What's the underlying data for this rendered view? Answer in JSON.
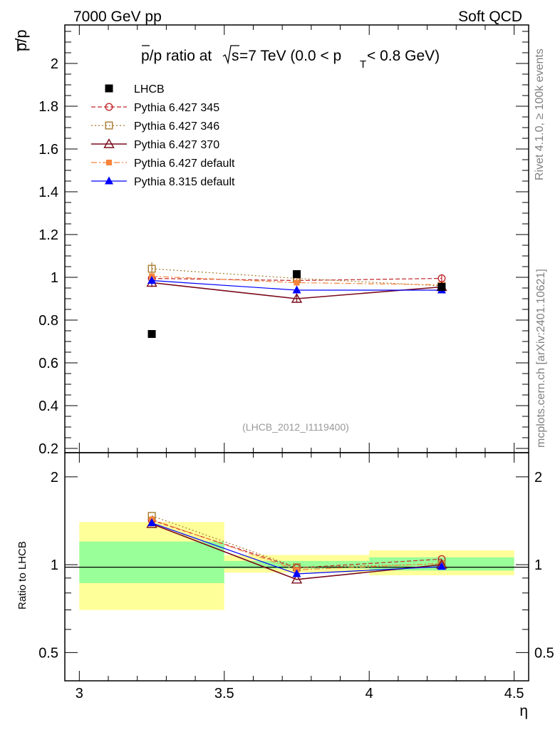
{
  "header": {
    "left": "7000 GeV pp",
    "right": "Soft QCD"
  },
  "side_labels": {
    "rivet": "Rivet 4.1.0, ≥ 100k events",
    "mcplots": "mcplots.cern.ch [arXiv:2401.10621]"
  },
  "watermark": "(LHCB_2012_I1119400)",
  "colors": {
    "lhcb": "#000000",
    "p345": "#c0272d",
    "p346": "#a67c2e",
    "p370": "#7a0a1a",
    "pdef6": "#f7843c",
    "pdef8": "#0000ff",
    "band_inner": "#99ff99",
    "band_outer": "#ffff99"
  },
  "chart_data": [
    {
      "type": "line",
      "title": "p̄/p ratio at √s=7 TeV (0.0 < pT < 0.8 GeV)",
      "title_parts": {
        "ratio": "p/p ratio at ",
        "sqrt_s": "s",
        "mid": "=7 TeV (0.0 < p",
        "sub": "T",
        "tail": " < 0.8 GeV)"
      },
      "ylabel": "p/p",
      "xlim": [
        2.95,
        4.55
      ],
      "ylim": [
        0.18,
        2.18
      ],
      "yticks": [
        0.2,
        0.4,
        0.6,
        0.8,
        1,
        1.2,
        1.4,
        1.6,
        1.8,
        2
      ],
      "ytick_labels": [
        "0.2",
        "0.4",
        "0.6",
        "0.8",
        "1",
        "1.2",
        "1.4",
        "1.6",
        "1.8",
        "2"
      ],
      "x": [
        3.25,
        3.75,
        4.25
      ],
      "series": [
        {
          "key": "lhcb",
          "name": "LHCB",
          "values": [
            0.735,
            1.015,
            0.955
          ],
          "errors": [
            0.01,
            0.01,
            0.01
          ]
        },
        {
          "key": "p345",
          "name": "Pythia 6.427 345",
          "values": [
            0.995,
            0.985,
            0.995
          ],
          "errors": [
            0.02,
            0.015,
            0.02
          ]
        },
        {
          "key": "p346",
          "name": "Pythia 6.427 346",
          "values": [
            1.04,
            0.995,
            0.96
          ],
          "errors": [
            0.03,
            0.015,
            0.02
          ]
        },
        {
          "key": "p370",
          "name": "Pythia 6.427 370",
          "values": [
            0.975,
            0.9,
            0.955
          ],
          "errors": [
            0.02,
            0.015,
            0.015
          ]
        },
        {
          "key": "pdef6",
          "name": "Pythia 6.427 default",
          "values": [
            1.005,
            0.975,
            0.965
          ],
          "errors": [
            0.02,
            0.015,
            0.015
          ]
        },
        {
          "key": "pdef8",
          "name": "Pythia 8.315 default",
          "values": [
            0.985,
            0.94,
            0.94
          ],
          "errors": [
            0.02,
            0.015,
            0.015
          ]
        }
      ]
    },
    {
      "type": "line",
      "ylabel": "Ratio to LHCB",
      "xlabel": "η",
      "yscale": "log",
      "xlim": [
        2.95,
        4.55
      ],
      "ylim": [
        0.4,
        2.42
      ],
      "xticks": [
        3,
        3.5,
        4,
        4.5
      ],
      "xtick_labels": [
        "3",
        "3.5",
        "4",
        "4.5"
      ],
      "yticks": [
        0.5,
        1,
        2
      ],
      "ytick_labels": [
        "0.5",
        "1",
        "2"
      ],
      "bands": [
        {
          "x_low": 3.0,
          "x_high": 3.5,
          "inner": [
            0.865,
            1.2
          ],
          "outer": [
            0.7,
            1.4
          ]
        },
        {
          "x_low": 3.5,
          "x_high": 4.0,
          "inner": [
            0.97,
            1.03
          ],
          "outer": [
            0.94,
            1.08
          ]
        },
        {
          "x_low": 4.0,
          "x_high": 4.5,
          "inner": [
            0.955,
            1.06
          ],
          "outer": [
            0.92,
            1.12
          ]
        }
      ],
      "x": [
        3.25,
        3.75,
        4.25
      ],
      "series": [
        {
          "key": "p345",
          "name": "Pythia 6.427 345",
          "values": [
            1.42,
            0.975,
            1.045
          ]
        },
        {
          "key": "p346",
          "name": "Pythia 6.427 346",
          "values": [
            1.47,
            0.98,
            1.005
          ]
        },
        {
          "key": "p370",
          "name": "Pythia 6.427 370",
          "values": [
            1.38,
            0.89,
            1.0
          ]
        },
        {
          "key": "pdef6",
          "name": "Pythia 6.427 default",
          "values": [
            1.43,
            0.96,
            1.01
          ]
        },
        {
          "key": "pdef8",
          "name": "Pythia 8.315 default",
          "values": [
            1.39,
            0.93,
            0.985
          ]
        }
      ]
    }
  ]
}
